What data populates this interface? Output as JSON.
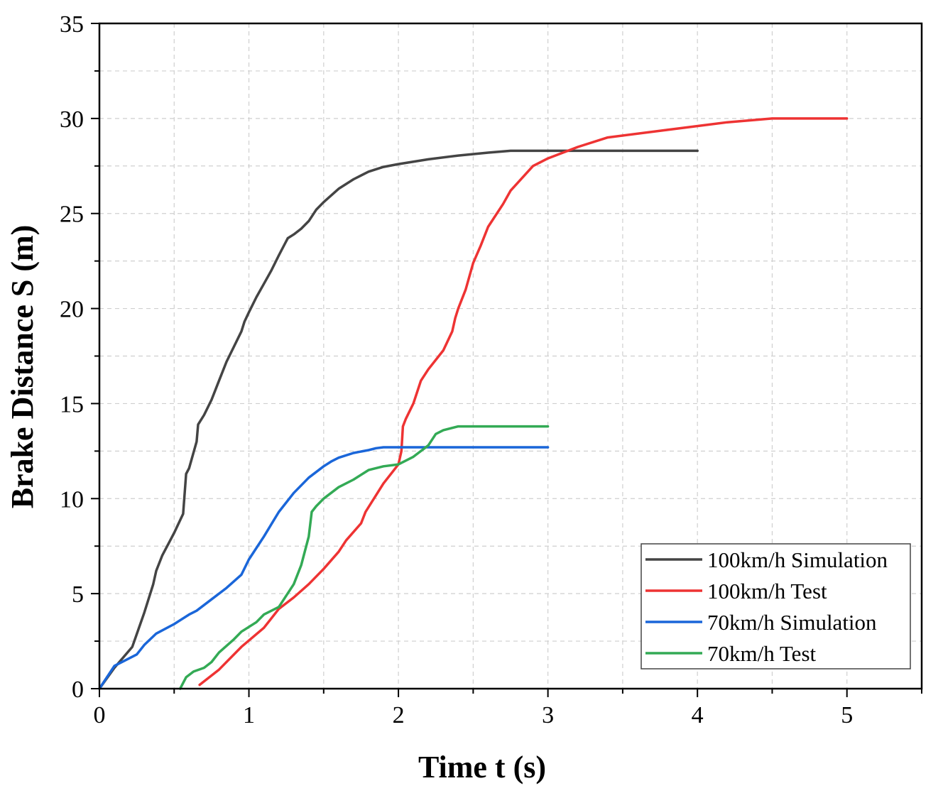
{
  "chart_data": {
    "type": "line",
    "title": "",
    "xlabel": "Time t (s)",
    "ylabel": "Brake Distance S (m)",
    "xlim": [
      0,
      5.5
    ],
    "ylim": [
      0,
      35
    ],
    "xticks": [
      0,
      1,
      2,
      3,
      4,
      5
    ],
    "yticks": [
      0,
      5,
      10,
      15,
      20,
      25,
      30,
      35
    ],
    "xtick_labels": [
      "0",
      "1",
      "2",
      "3",
      "4",
      "5"
    ],
    "ytick_labels": [
      "0",
      "5",
      "10",
      "15",
      "20",
      "25",
      "30",
      "35"
    ],
    "grid": true,
    "legend_position": "bottom-right",
    "series": [
      {
        "name": "100km/h Simulation",
        "color": "#444444",
        "x": [
          0,
          0.1,
          0.22,
          0.3,
          0.36,
          0.38,
          0.42,
          0.5,
          0.56,
          0.58,
          0.6,
          0.65,
          0.66,
          0.7,
          0.75,
          0.8,
          0.85,
          0.9,
          0.95,
          0.97,
          1.0,
          1.05,
          1.1,
          1.15,
          1.2,
          1.24,
          1.26,
          1.3,
          1.35,
          1.4,
          1.45,
          1.5,
          1.6,
          1.7,
          1.8,
          1.9,
          2.0,
          2.2,
          2.4,
          2.6,
          2.75,
          3.0,
          4.0
        ],
        "y": [
          0,
          1.1,
          2.2,
          4.0,
          5.5,
          6.2,
          7.0,
          8.2,
          9.2,
          11.3,
          11.6,
          13.0,
          13.9,
          14.4,
          15.2,
          16.2,
          17.2,
          18.0,
          18.8,
          19.3,
          19.8,
          20.6,
          21.3,
          22.0,
          22.8,
          23.4,
          23.7,
          23.9,
          24.2,
          24.6,
          25.2,
          25.6,
          26.3,
          26.8,
          27.2,
          27.45,
          27.6,
          27.85,
          28.05,
          28.2,
          28.3,
          28.3,
          28.3
        ],
        "end_label": ""
      },
      {
        "name": "100km/h Test",
        "color": "#ee3333",
        "x": [
          0.67,
          0.8,
          0.95,
          1.1,
          1.2,
          1.3,
          1.4,
          1.5,
          1.6,
          1.65,
          1.75,
          1.78,
          1.9,
          2.0,
          2.02,
          2.03,
          2.05,
          2.1,
          2.15,
          2.2,
          2.3,
          2.36,
          2.38,
          2.4,
          2.45,
          2.5,
          2.55,
          2.6,
          2.7,
          2.75,
          2.9,
          3.0,
          3.2,
          3.4,
          3.8,
          4.2,
          4.5,
          5.0
        ],
        "y": [
          0.2,
          1.0,
          2.2,
          3.2,
          4.2,
          4.8,
          5.5,
          6.3,
          7.2,
          7.8,
          8.7,
          9.3,
          10.8,
          11.8,
          12.5,
          13.8,
          14.2,
          15.0,
          16.2,
          16.8,
          17.8,
          18.8,
          19.5,
          20.0,
          21.0,
          22.4,
          23.3,
          24.3,
          25.5,
          26.2,
          27.5,
          27.9,
          28.5,
          29.0,
          29.4,
          29.8,
          30.0,
          30.0
        ],
        "end_label": ""
      },
      {
        "name": "70km/h Simulation",
        "color": "#1a66d9",
        "x": [
          0,
          0.1,
          0.25,
          0.3,
          0.38,
          0.5,
          0.6,
          0.65,
          0.75,
          0.85,
          0.95,
          1.0,
          1.1,
          1.2,
          1.3,
          1.4,
          1.5,
          1.55,
          1.6,
          1.7,
          1.8,
          1.85,
          1.9,
          2.0,
          2.5,
          3.0
        ],
        "y": [
          0,
          1.2,
          1.8,
          2.3,
          2.9,
          3.4,
          3.9,
          4.1,
          4.7,
          5.3,
          6.0,
          6.8,
          8.0,
          9.3,
          10.3,
          11.1,
          11.7,
          11.95,
          12.15,
          12.4,
          12.55,
          12.65,
          12.7,
          12.7,
          12.7,
          12.7
        ],
        "end_label": ""
      },
      {
        "name": "70km/h Test",
        "color": "#33aa55",
        "x": [
          0.54,
          0.58,
          0.63,
          0.7,
          0.75,
          0.8,
          0.9,
          0.95,
          1.05,
          1.1,
          1.2,
          1.3,
          1.35,
          1.4,
          1.42,
          1.45,
          1.5,
          1.6,
          1.7,
          1.8,
          1.9,
          2.0,
          2.1,
          2.2,
          2.25,
          2.3,
          2.4,
          2.6,
          3.0
        ],
        "y": [
          0,
          0.6,
          0.9,
          1.1,
          1.4,
          1.9,
          2.6,
          3.0,
          3.5,
          3.9,
          4.3,
          5.5,
          6.5,
          8.0,
          9.3,
          9.6,
          10.0,
          10.6,
          11.0,
          11.5,
          11.7,
          11.8,
          12.2,
          12.8,
          13.4,
          13.6,
          13.8,
          13.8,
          13.8
        ],
        "end_label": ""
      }
    ]
  }
}
